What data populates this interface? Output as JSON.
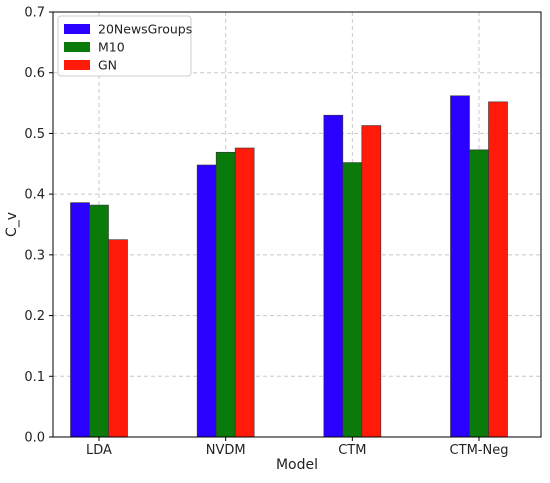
{
  "chart_data": {
    "type": "bar",
    "title": "",
    "xlabel": "Model",
    "ylabel": "C_v",
    "categories": [
      "LDA",
      "NVDM",
      "CTM",
      "CTM-Neg"
    ],
    "series": [
      {
        "name": "20NewsGroups",
        "color": "#2a00ff",
        "values": [
          0.386,
          0.448,
          0.53,
          0.562
        ]
      },
      {
        "name": "M10",
        "color": "#0a7a0a",
        "values": [
          0.382,
          0.469,
          0.452,
          0.473
        ]
      },
      {
        "name": "GN",
        "color": "#ff1a0a",
        "values": [
          0.325,
          0.476,
          0.513,
          0.552
        ]
      }
    ],
    "ylim": [
      0,
      0.7
    ],
    "yticks": [
      "0.0",
      "0.1",
      "0.2",
      "0.3",
      "0.4",
      "0.5",
      "0.6",
      "0.7"
    ],
    "grid": true,
    "legend_position": "top-left"
  }
}
